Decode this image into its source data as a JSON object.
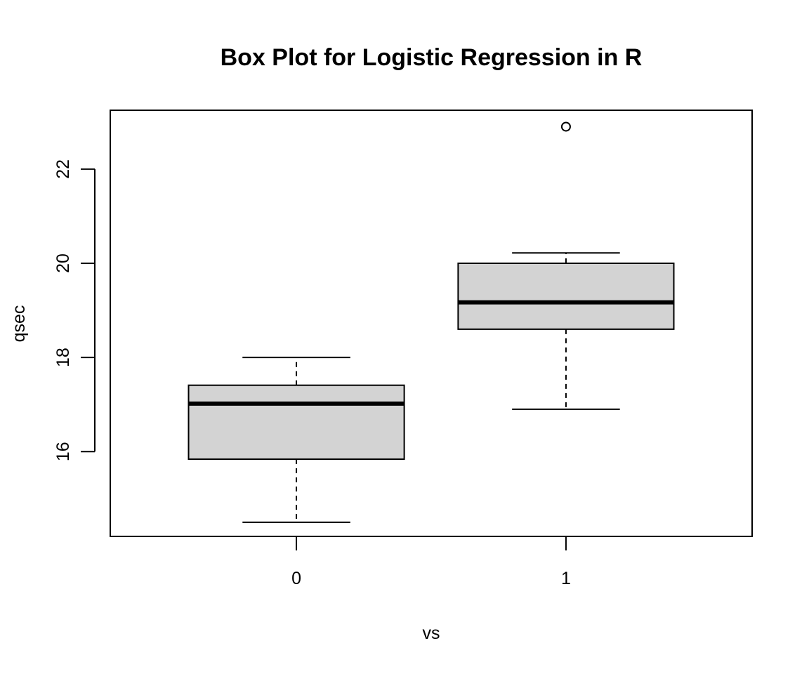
{
  "chart_data": {
    "type": "box",
    "title": "Box Plot for Logistic Regression in R",
    "xlabel": "vs",
    "ylabel": "qsec",
    "categories": [
      "0",
      "1"
    ],
    "ylim": [
      14.2,
      23.25
    ],
    "yticks": [
      "16",
      "18",
      "20",
      "22"
    ],
    "grid": false,
    "legend": "none",
    "box_fill": "#d3d3d3",
    "line_color": "#000000",
    "boxes": [
      {
        "category": "0",
        "whisker_low": 14.5,
        "q1": 15.84,
        "median": 17.02,
        "q3": 17.41,
        "whisker_high": 18.0,
        "outliers": []
      },
      {
        "category": "1",
        "whisker_low": 16.9,
        "q1": 18.6,
        "median": 19.17,
        "q3": 20.0,
        "whisker_high": 20.22,
        "outliers": [
          22.9
        ]
      }
    ]
  }
}
